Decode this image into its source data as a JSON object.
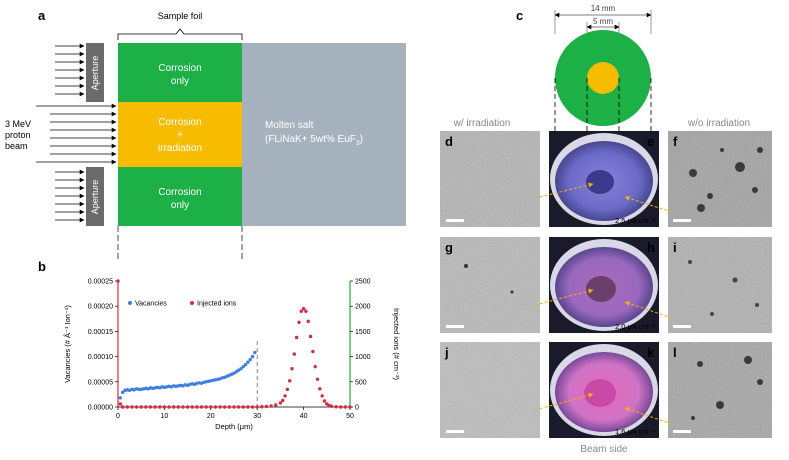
{
  "panels": {
    "a": "a",
    "b": "b",
    "c": "c",
    "d": "d",
    "e": "e",
    "f": "f",
    "g": "g",
    "h": "h",
    "i": "i",
    "j": "j",
    "k": "k",
    "l": "l"
  },
  "panel_a": {
    "sample_foil": "Sample foil",
    "aperture": "Aperture",
    "corrosion_only": "Corrosion only",
    "corrosion_irradiation_line1": "Corrosion",
    "corrosion_irradiation_line2": "+",
    "corrosion_irradiation_line3": "irradiation",
    "beam_line1": "3 MeV",
    "beam_line2": "proton",
    "beam_line3": "beam",
    "molten_salt_line1": "Molten salt",
    "molten_salt_line2": "(FLiNaK+ 5wt% EuF",
    "molten_salt_sub": "3",
    "molten_salt_close": ")",
    "colors": {
      "green": "#1db047",
      "orange": "#f7bb00",
      "gray_salt": "#a5b1bd",
      "aperture": "#6b6b6b"
    }
  },
  "panel_c": {
    "dim_outer": "14 mm",
    "dim_inner": "5 mm",
    "w_irradiation": "w/ irradiation",
    "wo_irradiation": "w/o irradiation",
    "beam_side": "Beam side",
    "intensities": {
      "e": "2.5 μA cm⁻²",
      "h": "2.0 μA cm⁻²",
      "k": "1.6 μA cm⁻²"
    }
  },
  "chart_data": {
    "type": "scatter",
    "xlabel": "Depth (μm)",
    "ylabel_left": "Vacancies (# Å⁻¹ Ion⁻¹)",
    "ylabel_right": "Injected ions (# cm⁻³)",
    "xlim": [
      0,
      50
    ],
    "ylim_left": [
      0,
      0.00025
    ],
    "ylim_right": [
      0,
      2500
    ],
    "x_ticks": [
      0,
      10,
      20,
      30,
      40,
      50
    ],
    "y_ticks_left": [
      "0.00000",
      "0.00005",
      "0.00010",
      "0.00015",
      "0.00020",
      "0.00025"
    ],
    "y_ticks_right": [
      "0",
      "500",
      "1000",
      "1500",
      "2000",
      "2500"
    ],
    "dashed_line_x": 30,
    "series": [
      {
        "name": "Vacancies",
        "axis": "left",
        "color": "#3f7fe0",
        "x": [
          0.5,
          1.0,
          1.5,
          2.0,
          2.5,
          3.0,
          3.5,
          4.0,
          4.5,
          5.0,
          5.5,
          6.0,
          6.5,
          7.0,
          7.5,
          8.0,
          8.5,
          9.0,
          9.5,
          10.0,
          10.5,
          11.0,
          11.5,
          12.0,
          12.5,
          13.0,
          13.5,
          14.0,
          14.5,
          15.0,
          15.5,
          16.0,
          16.5,
          17.0,
          17.5,
          18.0,
          18.5,
          19.0,
          19.5,
          20.0,
          20.5,
          21.0,
          21.5,
          22.0,
          22.5,
          23.0,
          23.5,
          24.0,
          24.5,
          25.0,
          25.5,
          26.0,
          26.5,
          27.0,
          27.5,
          28.0,
          28.5,
          29.0,
          29.5
        ],
        "y": [
          1.8e-05,
          2.9e-05,
          3.3e-05,
          3.4e-05,
          3.3e-05,
          3.5e-05,
          3.4e-05,
          3.6e-05,
          3.5e-05,
          3.5e-05,
          3.6e-05,
          3.7e-05,
          3.6e-05,
          3.8e-05,
          3.7e-05,
          3.8e-05,
          3.9e-05,
          3.8e-05,
          4e-05,
          3.9e-05,
          4e-05,
          4.1e-05,
          4e-05,
          4.2e-05,
          4.1e-05,
          4.2e-05,
          4.3e-05,
          4.2e-05,
          4.4e-05,
          4.3e-05,
          4.5e-05,
          4.6e-05,
          4.5e-05,
          4.7e-05,
          4.8e-05,
          4.7e-05,
          4.9e-05,
          5e-05,
          5.1e-05,
          5.2e-05,
          5.3e-05,
          5.4e-05,
          5.5e-05,
          5.6e-05,
          5.8e-05,
          5.9e-05,
          6.1e-05,
          6.3e-05,
          6.5e-05,
          6.7e-05,
          7e-05,
          7.3e-05,
          7.6e-05,
          8e-05,
          8.4e-05,
          8.9e-05,
          9.4e-05,
          0.0001,
          0.000108
        ]
      },
      {
        "name": "Injected ions",
        "axis": "right",
        "color": "#d62a40",
        "x": [
          0.0,
          0.5,
          1,
          2,
          3,
          4,
          5,
          6,
          7,
          8,
          9,
          10,
          11,
          12,
          13,
          14,
          15,
          16,
          17,
          18,
          19,
          20,
          21,
          22,
          23,
          24,
          25,
          26,
          27,
          28,
          29,
          30,
          31,
          32,
          33,
          34,
          35,
          35.5,
          36,
          36.5,
          37,
          37.5,
          38,
          38.5,
          39,
          39.5,
          40,
          40.5,
          41,
          41.5,
          42,
          42.5,
          43,
          43.5,
          44,
          44.5,
          45,
          45.5,
          46,
          47,
          48,
          49,
          50
        ],
        "y": [
          2500,
          60,
          0,
          0,
          0,
          0,
          0,
          0,
          0,
          0,
          0,
          0,
          0,
          0,
          0,
          0,
          0,
          0,
          0,
          0,
          0,
          0,
          0,
          0,
          0,
          0,
          0,
          0,
          0,
          0,
          0,
          0,
          5,
          10,
          20,
          40,
          80,
          130,
          220,
          350,
          520,
          760,
          1050,
          1380,
          1680,
          1900,
          1950,
          1900,
          1700,
          1400,
          1100,
          800,
          550,
          360,
          220,
          120,
          60,
          30,
          15,
          5,
          0,
          0,
          0
        ]
      }
    ]
  }
}
